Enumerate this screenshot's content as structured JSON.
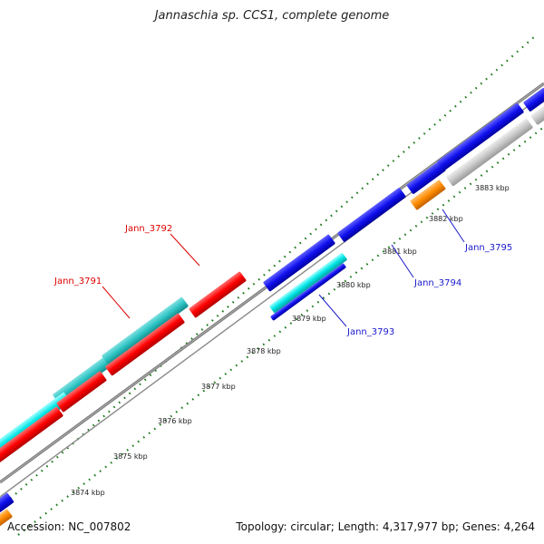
{
  "title": "Jannaschia sp. CCS1, complete genome",
  "footer": {
    "accession": "Accession: NC_007802",
    "summary": "Topology: circular; Length: 4,317,977 bp; Genes: 4,264"
  },
  "colors": {
    "backbone": "#8a8a8a",
    "tick": "#1e7a1e",
    "red": "#ff0000",
    "cyan": "#00e5e5",
    "teal": "#2ec4c4",
    "blue": "#1010ee",
    "orange": "#ff8c00",
    "gray": "#c8c8c8",
    "label_red": "#dd0000",
    "label_blue": "#1a1acc"
  },
  "scale_labels": [
    "3874 kbp",
    "3875 kbp",
    "3876 kbp",
    "3877 kbp",
    "3878 kbp",
    "3879 kbp",
    "3880 kbp",
    "3881 kbp",
    "3882 kbp",
    "3883 kbp"
  ],
  "gene_labels": [
    {
      "text": "Jann_3792",
      "color": "red"
    },
    {
      "text": "Jann_3791",
      "color": "red"
    },
    {
      "text": "Jann_3795",
      "color": "blue"
    },
    {
      "text": "Jann_3794",
      "color": "blue"
    },
    {
      "text": "Jann_3793",
      "color": "blue"
    }
  ]
}
